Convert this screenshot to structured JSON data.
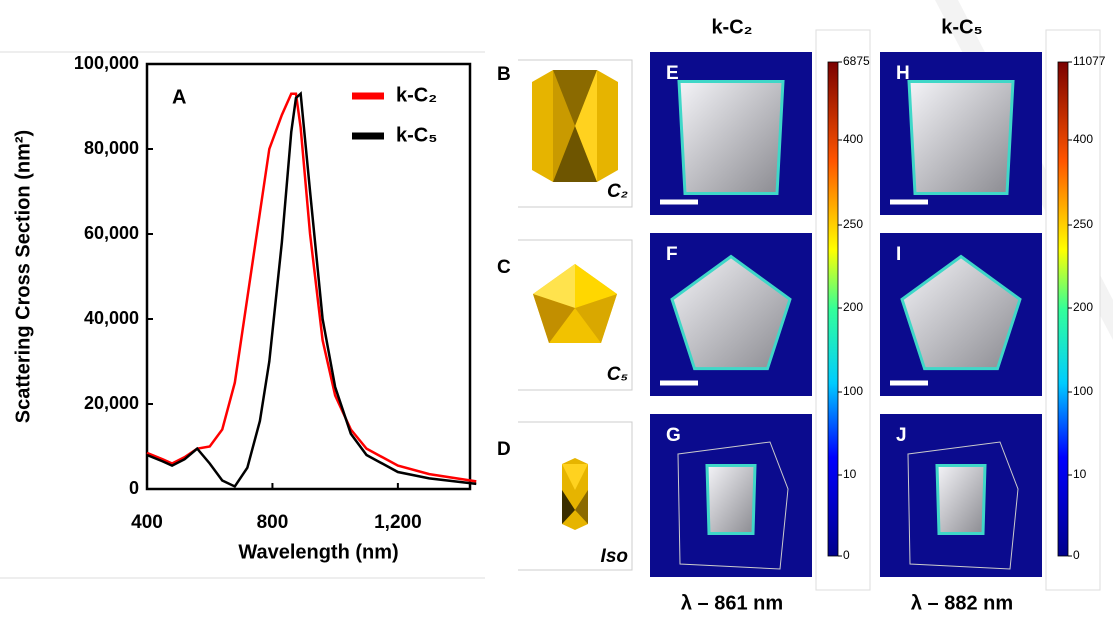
{
  "chart_data": {
    "type": "line",
    "panel_label": "A",
    "x_label": "Wavelength (nm)",
    "y_label": "Scattering Cross Section (nm²)",
    "x": [
      400,
      450,
      480,
      520,
      560,
      600,
      640,
      680,
      720,
      760,
      790,
      830,
      860,
      875,
      890,
      920,
      960,
      1000,
      1050,
      1100,
      1200,
      1300,
      1450
    ],
    "series": [
      {
        "name": "k-C₂",
        "color": "#ff0000",
        "values": [
          8500,
          7000,
          6000,
          7500,
          9500,
          10000,
          14000,
          25000,
          45000,
          65000,
          80000,
          88000,
          93000,
          93000,
          85000,
          60000,
          35000,
          22000,
          14000,
          9500,
          5500,
          3500,
          1800
        ]
      },
      {
        "name": "k-C₅",
        "color": "#000000",
        "values": [
          8000,
          6500,
          5500,
          7000,
          9500,
          6000,
          2000,
          600,
          5000,
          16000,
          30000,
          58000,
          84000,
          92000,
          93000,
          70000,
          40000,
          24000,
          13000,
          8000,
          4000,
          2500,
          1200
        ]
      }
    ],
    "xlim": [
      400,
      1430
    ],
    "xticks": [
      400,
      800,
      {
        "value": 1200,
        "label": "1,200"
      }
    ],
    "ylim": [
      0,
      100000
    ],
    "yticks": [
      0,
      {
        "value": 20000,
        "label": "20,000"
      },
      {
        "value": 40000,
        "label": "40,000"
      },
      {
        "value": 60000,
        "label": "60,000"
      },
      {
        "value": 80000,
        "label": "80,000"
      },
      {
        "value": 100000,
        "label": "100,000"
      }
    ],
    "legend": "upper right"
  },
  "shape_panels": [
    {
      "label": "B",
      "symmetry": "C₂"
    },
    {
      "label": "C",
      "symmetry": "C₅"
    },
    {
      "label": "D",
      "symmetry": "Iso"
    }
  ],
  "field_columns": [
    {
      "title": "k-C₂",
      "panels": [
        "E",
        "F",
        "G"
      ],
      "colorbar_ticks": [
        6875,
        400,
        250,
        200,
        100,
        10,
        0
      ],
      "wavelength": "λ – 861 nm"
    },
    {
      "title": "k-C₅",
      "panels": [
        "H",
        "I",
        "J"
      ],
      "colorbar_ticks": [
        11077,
        400,
        250,
        200,
        100,
        10,
        0
      ],
      "wavelength": "λ – 882 nm"
    }
  ]
}
